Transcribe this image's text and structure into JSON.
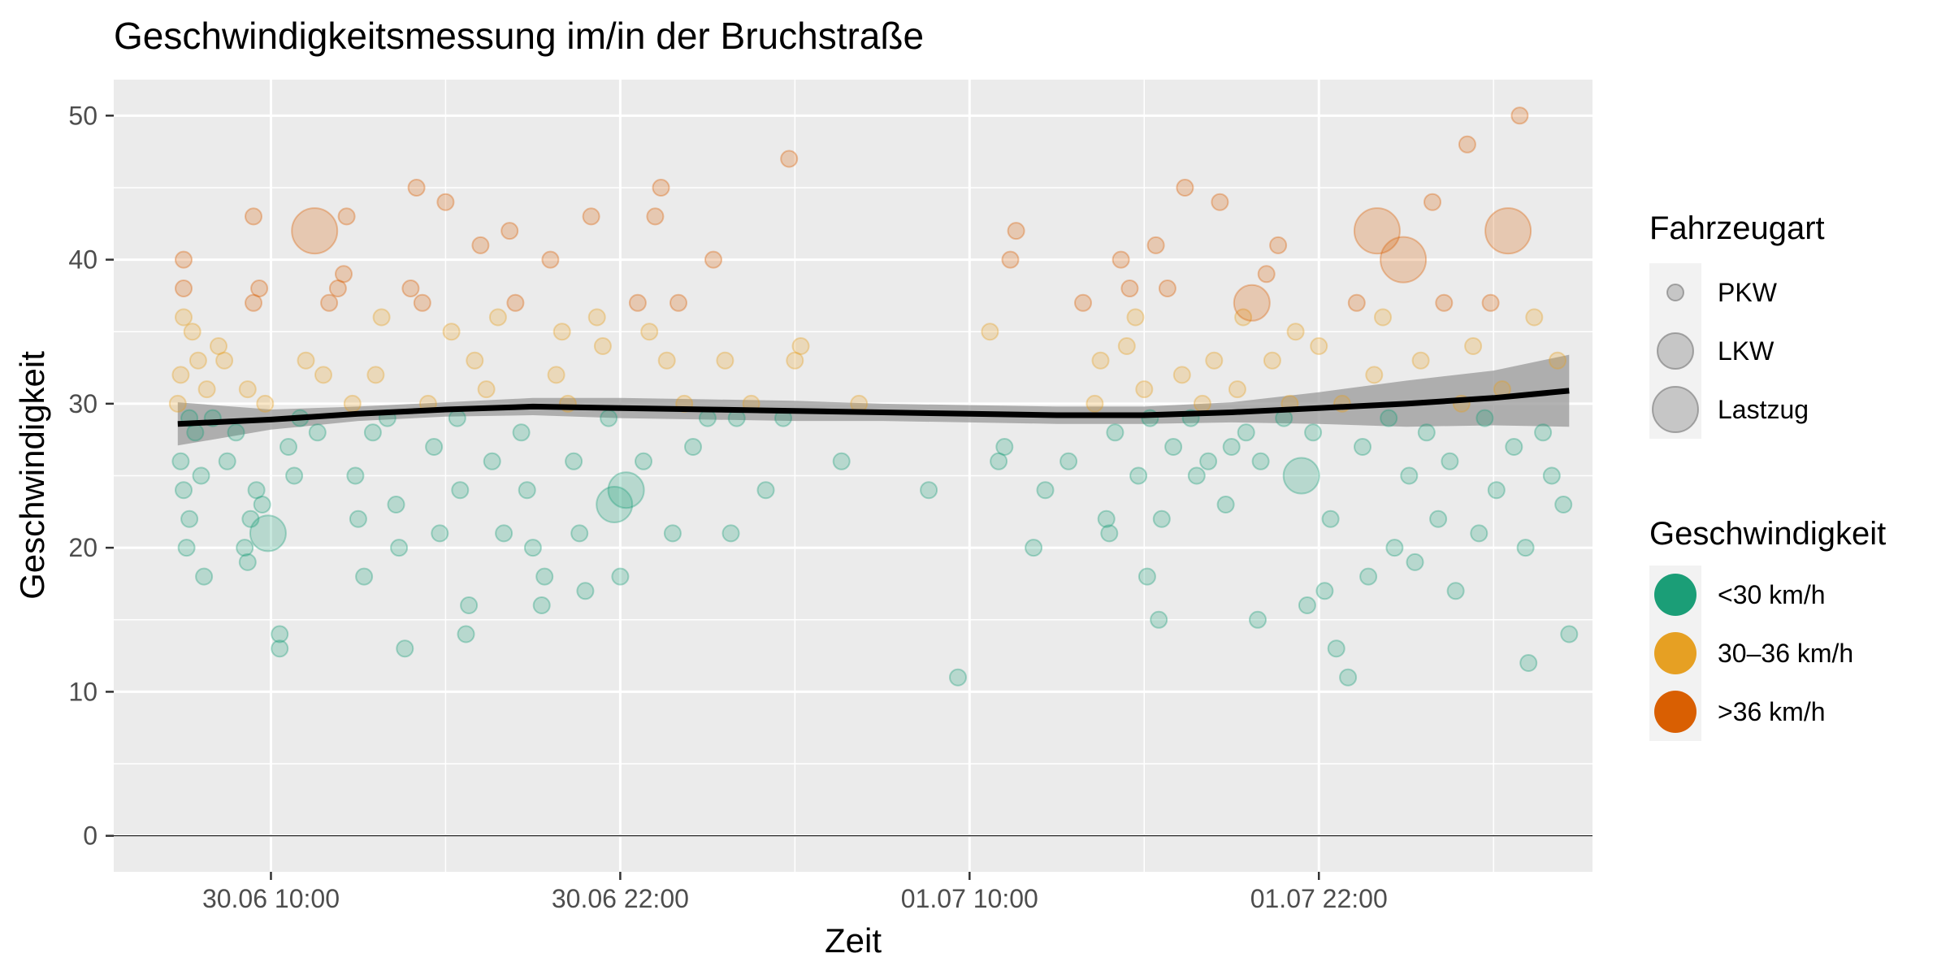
{
  "chart_data": {
    "type": "scatter",
    "title": "Geschwindigkeitsmessung im/in der Bruchstraße",
    "xlabel": "Zeit",
    "ylabel": "Geschwindigkeit",
    "x_range_hours": [
      -5.4,
      45.4
    ],
    "ylim": [
      -2.5,
      52.5
    ],
    "x_ticks": [
      {
        "hour": 0,
        "label": "30.06 10:00"
      },
      {
        "hour": 12,
        "label": "30.06 22:00"
      },
      {
        "hour": 24,
        "label": "01.07 10:00"
      },
      {
        "hour": 36,
        "label": "01.07 22:00"
      }
    ],
    "y_ticks": [
      0,
      10,
      20,
      30,
      40,
      50
    ],
    "grid": true,
    "legend_position": "right",
    "size_legend": {
      "title": "Fahrzeugart",
      "entries": [
        {
          "key": "PKW",
          "label": "PKW"
        },
        {
          "key": "LKW",
          "label": "LKW"
        },
        {
          "key": "Lastzug",
          "label": "Lastzug"
        }
      ]
    },
    "color_legend": {
      "title": "Geschwindigkeit",
      "entries": [
        {
          "key": "slow",
          "label": "<30 km/h",
          "color": "#1B9E77"
        },
        {
          "key": "mid",
          "label": "30–36 km/h",
          "color": "#E6A023"
        },
        {
          "key": "fast",
          "label": ">36 km/h",
          "color": "#D95F02"
        }
      ]
    },
    "colors": {
      "panel": "#EBEBEB",
      "grid": "#FFFFFF",
      "trend": "#000000",
      "ribbon": "#999999"
    },
    "trend": {
      "x": [
        -3.2,
        0,
        3,
        6,
        9,
        12,
        15,
        18,
        21,
        24,
        27,
        30,
        33,
        36,
        39,
        42,
        44.6
      ],
      "y": [
        28.6,
        28.9,
        29.3,
        29.6,
        29.8,
        29.7,
        29.6,
        29.5,
        29.4,
        29.3,
        29.2,
        29.2,
        29.4,
        29.7,
        30.0,
        30.4,
        30.9
      ],
      "lower": [
        27.1,
        28.2,
        28.8,
        29.1,
        29.2,
        29.0,
        28.9,
        28.8,
        28.8,
        28.7,
        28.6,
        28.6,
        28.7,
        28.6,
        28.4,
        28.5,
        28.4
      ],
      "upper": [
        30.1,
        29.6,
        29.8,
        30.1,
        30.4,
        30.4,
        30.3,
        30.2,
        30.0,
        29.9,
        29.8,
        29.8,
        30.1,
        30.8,
        31.6,
        32.3,
        33.4
      ]
    },
    "points": [
      [
        -3,
        40,
        "P"
      ],
      [
        -3,
        38,
        "P"
      ],
      [
        -3,
        36,
        "P"
      ],
      [
        -2.7,
        35,
        "P"
      ],
      [
        -2.5,
        33,
        "P"
      ],
      [
        -3.1,
        32,
        "P"
      ],
      [
        -2.2,
        31,
        "P"
      ],
      [
        -3.2,
        30,
        "P"
      ],
      [
        -2.8,
        29,
        "P"
      ],
      [
        -2.6,
        28,
        "P"
      ],
      [
        -3.1,
        26,
        "P"
      ],
      [
        -3,
        24,
        "P"
      ],
      [
        -2.8,
        22,
        "P"
      ],
      [
        -2.9,
        20,
        "P"
      ],
      [
        -2.3,
        18,
        "P"
      ],
      [
        -2.4,
        25,
        "P"
      ],
      [
        -2,
        29,
        "P"
      ],
      [
        -1.6,
        33,
        "P"
      ],
      [
        -1.8,
        34,
        "P"
      ],
      [
        -1.5,
        26,
        "P"
      ],
      [
        -1.2,
        28,
        "P"
      ],
      [
        -0.8,
        31,
        "P"
      ],
      [
        -0.6,
        43,
        "P"
      ],
      [
        -0.6,
        37,
        "P"
      ],
      [
        -0.4,
        38,
        "P"
      ],
      [
        -0.2,
        30,
        "P"
      ],
      [
        -0.5,
        24,
        "P"
      ],
      [
        -0.7,
        22,
        "P"
      ],
      [
        -0.9,
        20,
        "P"
      ],
      [
        -0.8,
        19,
        "P"
      ],
      [
        -0.3,
        23,
        "P"
      ],
      [
        -0.1,
        21,
        "L"
      ],
      [
        0.3,
        13,
        "P"
      ],
      [
        0.3,
        14,
        "P"
      ],
      [
        0.6,
        27,
        "P"
      ],
      [
        0.8,
        25,
        "P"
      ],
      [
        1,
        29,
        "P"
      ],
      [
        1.2,
        33,
        "P"
      ],
      [
        1.5,
        42,
        "Z"
      ],
      [
        1.6,
        28,
        "P"
      ],
      [
        1.8,
        32,
        "P"
      ],
      [
        2,
        37,
        "P"
      ],
      [
        2.3,
        38,
        "P"
      ],
      [
        2.5,
        39,
        "P"
      ],
      [
        2.6,
        43,
        "P"
      ],
      [
        2.8,
        30,
        "P"
      ],
      [
        2.9,
        25,
        "P"
      ],
      [
        3,
        22,
        "P"
      ],
      [
        3.2,
        18,
        "P"
      ],
      [
        3.5,
        28,
        "P"
      ],
      [
        3.6,
        32,
        "P"
      ],
      [
        3.8,
        36,
        "P"
      ],
      [
        4,
        29,
        "P"
      ],
      [
        4.3,
        23,
        "P"
      ],
      [
        4.4,
        20,
        "P"
      ],
      [
        4.6,
        13,
        "P"
      ],
      [
        4.8,
        38,
        "P"
      ],
      [
        5,
        45,
        "P"
      ],
      [
        5.2,
        37,
        "P"
      ],
      [
        5.4,
        30,
        "P"
      ],
      [
        5.6,
        27,
        "P"
      ],
      [
        5.8,
        21,
        "P"
      ],
      [
        6,
        44,
        "P"
      ],
      [
        6.2,
        35,
        "P"
      ],
      [
        6.4,
        29,
        "P"
      ],
      [
        6.5,
        24,
        "P"
      ],
      [
        6.7,
        14,
        "P"
      ],
      [
        6.8,
        16,
        "P"
      ],
      [
        7,
        33,
        "P"
      ],
      [
        7.2,
        41,
        "P"
      ],
      [
        7.4,
        31,
        "P"
      ],
      [
        7.6,
        26,
        "P"
      ],
      [
        7.8,
        36,
        "P"
      ],
      [
        8,
        21,
        "P"
      ],
      [
        8.2,
        42,
        "P"
      ],
      [
        8.4,
        37,
        "P"
      ],
      [
        8.6,
        28,
        "P"
      ],
      [
        8.8,
        24,
        "P"
      ],
      [
        9,
        20,
        "P"
      ],
      [
        9.3,
        16,
        "P"
      ],
      [
        9.4,
        18,
        "P"
      ],
      [
        9.6,
        40,
        "P"
      ],
      [
        9.8,
        32,
        "P"
      ],
      [
        10,
        35,
        "P"
      ],
      [
        10.2,
        30,
        "P"
      ],
      [
        10.4,
        26,
        "P"
      ],
      [
        10.6,
        21,
        "P"
      ],
      [
        10.8,
        17,
        "P"
      ],
      [
        11,
        43,
        "P"
      ],
      [
        11.2,
        36,
        "P"
      ],
      [
        11.4,
        34,
        "P"
      ],
      [
        11.6,
        29,
        "P"
      ],
      [
        11.8,
        23,
        "L"
      ],
      [
        12,
        18,
        "P"
      ],
      [
        12.2,
        24,
        "L"
      ],
      [
        12.6,
        37,
        "P"
      ],
      [
        12.8,
        26,
        "P"
      ],
      [
        13,
        35,
        "P"
      ],
      [
        13.2,
        43,
        "P"
      ],
      [
        13.4,
        45,
        "P"
      ],
      [
        13.6,
        33,
        "P"
      ],
      [
        13.8,
        21,
        "P"
      ],
      [
        14,
        37,
        "P"
      ],
      [
        14.2,
        30,
        "P"
      ],
      [
        14.5,
        27,
        "P"
      ],
      [
        15,
        29,
        "P"
      ],
      [
        15.2,
        40,
        "P"
      ],
      [
        15.6,
        33,
        "P"
      ],
      [
        15.8,
        21,
        "P"
      ],
      [
        16,
        29,
        "P"
      ],
      [
        16.5,
        30,
        "P"
      ],
      [
        17,
        24,
        "P"
      ],
      [
        17.6,
        29,
        "P"
      ],
      [
        17.8,
        47,
        "P"
      ],
      [
        18,
        33,
        "P"
      ],
      [
        18.2,
        34,
        "P"
      ],
      [
        19.6,
        26,
        "P"
      ],
      [
        20.2,
        30,
        "P"
      ],
      [
        22.6,
        24,
        "P"
      ],
      [
        23.6,
        11,
        "P"
      ],
      [
        24.7,
        35,
        "P"
      ],
      [
        25,
        26,
        "P"
      ],
      [
        25.2,
        27,
        "P"
      ],
      [
        25.4,
        40,
        "P"
      ],
      [
        25.6,
        42,
        "P"
      ],
      [
        26.2,
        20,
        "P"
      ],
      [
        26.6,
        24,
        "P"
      ],
      [
        27.4,
        26,
        "P"
      ],
      [
        27.9,
        37,
        "P"
      ],
      [
        28.3,
        30,
        "P"
      ],
      [
        28.5,
        33,
        "P"
      ],
      [
        28.7,
        22,
        "P"
      ],
      [
        28.8,
        21,
        "P"
      ],
      [
        29,
        28,
        "P"
      ],
      [
        29.2,
        40,
        "P"
      ],
      [
        29.4,
        34,
        "P"
      ],
      [
        29.5,
        38,
        "P"
      ],
      [
        29.7,
        36,
        "P"
      ],
      [
        29.8,
        25,
        "P"
      ],
      [
        30,
        31,
        "P"
      ],
      [
        30.1,
        18,
        "P"
      ],
      [
        30.2,
        29,
        "P"
      ],
      [
        30.4,
        41,
        "P"
      ],
      [
        30.5,
        15,
        "P"
      ],
      [
        30.6,
        22,
        "P"
      ],
      [
        30.8,
        38,
        "P"
      ],
      [
        31,
        27,
        "P"
      ],
      [
        31.3,
        32,
        "P"
      ],
      [
        31.4,
        45,
        "P"
      ],
      [
        31.6,
        29,
        "P"
      ],
      [
        31.8,
        25,
        "P"
      ],
      [
        32,
        30,
        "P"
      ],
      [
        32.2,
        26,
        "P"
      ],
      [
        32.4,
        33,
        "P"
      ],
      [
        32.6,
        44,
        "P"
      ],
      [
        32.8,
        23,
        "P"
      ],
      [
        33,
        27,
        "P"
      ],
      [
        33.2,
        31,
        "P"
      ],
      [
        33.4,
        36,
        "P"
      ],
      [
        33.5,
        28,
        "P"
      ],
      [
        33.7,
        37,
        "L"
      ],
      [
        33.9,
        15,
        "P"
      ],
      [
        34,
        26,
        "P"
      ],
      [
        34.2,
        39,
        "P"
      ],
      [
        34.4,
        33,
        "P"
      ],
      [
        34.6,
        41,
        "P"
      ],
      [
        34.8,
        29,
        "P"
      ],
      [
        35,
        30,
        "P"
      ],
      [
        35.2,
        35,
        "P"
      ],
      [
        35.4,
        25,
        "L"
      ],
      [
        35.6,
        16,
        "P"
      ],
      [
        35.8,
        28,
        "P"
      ],
      [
        36,
        34,
        "P"
      ],
      [
        36.2,
        17,
        "P"
      ],
      [
        36.4,
        22,
        "P"
      ],
      [
        36.6,
        13,
        "P"
      ],
      [
        36.8,
        30,
        "P"
      ],
      [
        37,
        11,
        "P"
      ],
      [
        37.3,
        37,
        "P"
      ],
      [
        37.5,
        27,
        "P"
      ],
      [
        37.7,
        18,
        "P"
      ],
      [
        37.9,
        32,
        "P"
      ],
      [
        38,
        42,
        "Z"
      ],
      [
        38.2,
        36,
        "P"
      ],
      [
        38.4,
        29,
        "P"
      ],
      [
        38.6,
        20,
        "P"
      ],
      [
        38.9,
        40,
        "Z"
      ],
      [
        39.1,
        25,
        "P"
      ],
      [
        39.3,
        19,
        "P"
      ],
      [
        39.5,
        33,
        "P"
      ],
      [
        39.7,
        28,
        "P"
      ],
      [
        39.9,
        44,
        "P"
      ],
      [
        40.1,
        22,
        "P"
      ],
      [
        40.3,
        37,
        "P"
      ],
      [
        40.5,
        26,
        "P"
      ],
      [
        40.7,
        17,
        "P"
      ],
      [
        40.9,
        30,
        "P"
      ],
      [
        41.1,
        48,
        "P"
      ],
      [
        41.3,
        34,
        "P"
      ],
      [
        41.5,
        21,
        "P"
      ],
      [
        41.7,
        29,
        "P"
      ],
      [
        41.9,
        37,
        "P"
      ],
      [
        42.1,
        24,
        "P"
      ],
      [
        42.3,
        31,
        "P"
      ],
      [
        42.5,
        42,
        "Z"
      ],
      [
        42.7,
        27,
        "P"
      ],
      [
        42.9,
        50,
        "P"
      ],
      [
        43.1,
        20,
        "P"
      ],
      [
        43.2,
        12,
        "P"
      ],
      [
        43.4,
        36,
        "P"
      ],
      [
        43.7,
        28,
        "P"
      ],
      [
        44,
        25,
        "P"
      ],
      [
        44.2,
        33,
        "P"
      ],
      [
        44.4,
        23,
        "P"
      ],
      [
        44.6,
        14,
        "P"
      ]
    ]
  }
}
